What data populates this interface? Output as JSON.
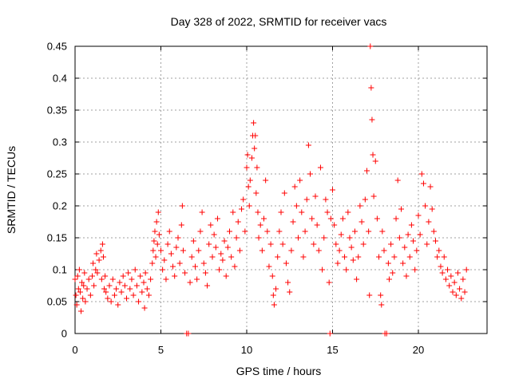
{
  "chart_data": {
    "type": "scatter",
    "title": "Day 328 of 2022, SRMTID for receiver vacs",
    "xlabel": "GPS time / hours",
    "ylabel": "SRMTID / TECUs",
    "xlim": [
      0,
      24
    ],
    "ylim": [
      0,
      0.45
    ],
    "xticks": [
      0,
      5,
      10,
      15,
      20
    ],
    "xtick_labels": [
      "0",
      "5",
      "10",
      "15",
      "20"
    ],
    "yticks": [
      0,
      0.05,
      0.1,
      0.15,
      0.2,
      0.25,
      0.3,
      0.35,
      0.4,
      0.45
    ],
    "ytick_labels": [
      "0",
      "0.05",
      "0.1",
      "0.15",
      "0.2",
      "0.25",
      "0.3",
      "0.35",
      "0.4",
      "0.45"
    ],
    "grid": true,
    "marker": "+",
    "marker_color": "#ff0000",
    "series": [
      {
        "name": "SRMTID",
        "points": [
          [
            0.0,
            0.085
          ],
          [
            0.05,
            0.06
          ],
          [
            0.1,
            0.045
          ],
          [
            0.15,
            0.09
          ],
          [
            0.2,
            0.07
          ],
          [
            0.25,
            0.1
          ],
          [
            0.3,
            0.065
          ],
          [
            0.35,
            0.035
          ],
          [
            0.4,
            0.08
          ],
          [
            0.45,
            0.055
          ],
          [
            0.5,
            0.075
          ],
          [
            0.55,
            0.095
          ],
          [
            0.6,
            0.05
          ],
          [
            0.7,
            0.07
          ],
          [
            0.8,
            0.085
          ],
          [
            0.9,
            0.06
          ],
          [
            1.0,
            0.09
          ],
          [
            1.05,
            0.11
          ],
          [
            1.1,
            0.075
          ],
          [
            1.2,
            0.1
          ],
          [
            1.25,
            0.125
          ],
          [
            1.3,
            0.095
          ],
          [
            1.4,
            0.115
          ],
          [
            1.5,
            0.13
          ],
          [
            1.55,
            0.085
          ],
          [
            1.6,
            0.14
          ],
          [
            1.65,
            0.12
          ],
          [
            1.7,
            0.07
          ],
          [
            1.75,
            0.09
          ],
          [
            1.8,
            0.065
          ],
          [
            1.9,
            0.055
          ],
          [
            2.0,
            0.075
          ],
          [
            2.1,
            0.05
          ],
          [
            2.2,
            0.085
          ],
          [
            2.3,
            0.06
          ],
          [
            2.4,
            0.07
          ],
          [
            2.5,
            0.045
          ],
          [
            2.6,
            0.08
          ],
          [
            2.7,
            0.065
          ],
          [
            2.8,
            0.09
          ],
          [
            2.9,
            0.075
          ],
          [
            3.0,
            0.055
          ],
          [
            3.1,
            0.095
          ],
          [
            3.2,
            0.07
          ],
          [
            3.3,
            0.085
          ],
          [
            3.4,
            0.06
          ],
          [
            3.5,
            0.1
          ],
          [
            3.6,
            0.075
          ],
          [
            3.7,
            0.05
          ],
          [
            3.8,
            0.09
          ],
          [
            3.9,
            0.065
          ],
          [
            4.0,
            0.08
          ],
          [
            4.05,
            0.04
          ],
          [
            4.1,
            0.095
          ],
          [
            4.2,
            0.07
          ],
          [
            4.3,
            0.06
          ],
          [
            4.4,
            0.085
          ],
          [
            4.5,
            0.11
          ],
          [
            4.55,
            0.13
          ],
          [
            4.6,
            0.145
          ],
          [
            4.65,
            0.16
          ],
          [
            4.7,
            0.12
          ],
          [
            4.75,
            0.175
          ],
          [
            4.8,
            0.14
          ],
          [
            4.85,
            0.19
          ],
          [
            4.9,
            0.155
          ],
          [
            5.0,
            0.13
          ],
          [
            5.1,
            0.1
          ],
          [
            5.2,
            0.115
          ],
          [
            5.3,
            0.085
          ],
          [
            5.4,
            0.14
          ],
          [
            5.5,
            0.16
          ],
          [
            5.6,
            0.125
          ],
          [
            5.7,
            0.105
          ],
          [
            5.8,
            0.09
          ],
          [
            5.9,
            0.135
          ],
          [
            6.0,
            0.15
          ],
          [
            6.1,
            0.11
          ],
          [
            6.2,
            0.17
          ],
          [
            6.25,
            0.2
          ],
          [
            6.3,
            0.13
          ],
          [
            6.4,
            0.095
          ],
          [
            6.5,
            0.0
          ],
          [
            6.6,
            0.0
          ],
          [
            6.7,
            0.08
          ],
          [
            6.8,
            0.12
          ],
          [
            6.9,
            0.145
          ],
          [
            7.0,
            0.105
          ],
          [
            7.1,
            0.085
          ],
          [
            7.2,
            0.13
          ],
          [
            7.3,
            0.16
          ],
          [
            7.4,
            0.19
          ],
          [
            7.5,
            0.11
          ],
          [
            7.6,
            0.095
          ],
          [
            7.7,
            0.075
          ],
          [
            7.8,
            0.14
          ],
          [
            7.9,
            0.17
          ],
          [
            8.0,
            0.12
          ],
          [
            8.1,
            0.155
          ],
          [
            8.2,
            0.135
          ],
          [
            8.3,
            0.18
          ],
          [
            8.4,
            0.1
          ],
          [
            8.5,
            0.125
          ],
          [
            8.6,
            0.115
          ],
          [
            8.7,
            0.145
          ],
          [
            8.8,
            0.09
          ],
          [
            8.9,
            0.135
          ],
          [
            9.0,
            0.16
          ],
          [
            9.1,
            0.12
          ],
          [
            9.2,
            0.19
          ],
          [
            9.3,
            0.105
          ],
          [
            9.4,
            0.15
          ],
          [
            9.5,
            0.175
          ],
          [
            9.6,
            0.13
          ],
          [
            9.7,
            0.195
          ],
          [
            9.8,
            0.21
          ],
          [
            9.9,
            0.16
          ],
          [
            10.0,
            0.26
          ],
          [
            10.05,
            0.28
          ],
          [
            10.1,
            0.23
          ],
          [
            10.15,
            0.2
          ],
          [
            10.2,
            0.24
          ],
          [
            10.3,
            0.275
          ],
          [
            10.35,
            0.31
          ],
          [
            10.4,
            0.33
          ],
          [
            10.45,
            0.29
          ],
          [
            10.5,
            0.31
          ],
          [
            10.55,
            0.22
          ],
          [
            10.6,
            0.26
          ],
          [
            10.65,
            0.19
          ],
          [
            10.7,
            0.15
          ],
          [
            10.8,
            0.17
          ],
          [
            10.9,
            0.13
          ],
          [
            11.0,
            0.18
          ],
          [
            11.1,
            0.24
          ],
          [
            11.2,
            0.16
          ],
          [
            11.3,
            0.105
          ],
          [
            11.4,
            0.14
          ],
          [
            11.5,
            0.09
          ],
          [
            11.55,
            0.06
          ],
          [
            11.6,
            0.045
          ],
          [
            11.7,
            0.07
          ],
          [
            11.8,
            0.12
          ],
          [
            11.9,
            0.16
          ],
          [
            12.0,
            0.19
          ],
          [
            12.1,
            0.14
          ],
          [
            12.2,
            0.22
          ],
          [
            12.3,
            0.11
          ],
          [
            12.4,
            0.08
          ],
          [
            12.5,
            0.065
          ],
          [
            12.6,
            0.13
          ],
          [
            12.7,
            0.175
          ],
          [
            12.8,
            0.23
          ],
          [
            12.9,
            0.2
          ],
          [
            13.0,
            0.15
          ],
          [
            13.1,
            0.24
          ],
          [
            13.2,
            0.19
          ],
          [
            13.3,
            0.12
          ],
          [
            13.4,
            0.16
          ],
          [
            13.5,
            0.21
          ],
          [
            13.6,
            0.295
          ],
          [
            13.7,
            0.25
          ],
          [
            13.8,
            0.18
          ],
          [
            13.9,
            0.14
          ],
          [
            14.0,
            0.215
          ],
          [
            14.1,
            0.17
          ],
          [
            14.2,
            0.13
          ],
          [
            14.3,
            0.26
          ],
          [
            14.4,
            0.1
          ],
          [
            14.5,
            0.15
          ],
          [
            14.6,
            0.21
          ],
          [
            14.7,
            0.19
          ],
          [
            14.8,
            0.08
          ],
          [
            14.85,
            0.0
          ],
          [
            14.9,
            0.18
          ],
          [
            15.0,
            0.225
          ],
          [
            15.1,
            0.17
          ],
          [
            15.2,
            0.14
          ],
          [
            15.3,
            0.11
          ],
          [
            15.4,
            0.13
          ],
          [
            15.5,
            0.155
          ],
          [
            15.6,
            0.18
          ],
          [
            15.7,
            0.12
          ],
          [
            15.8,
            0.1
          ],
          [
            15.9,
            0.19
          ],
          [
            16.0,
            0.15
          ],
          [
            16.1,
            0.135
          ],
          [
            16.2,
            0.115
          ],
          [
            16.3,
            0.16
          ],
          [
            16.4,
            0.085
          ],
          [
            16.5,
            0.12
          ],
          [
            16.6,
            0.2
          ],
          [
            16.7,
            0.175
          ],
          [
            16.8,
            0.14
          ],
          [
            16.9,
            0.21
          ],
          [
            17.0,
            0.255
          ],
          [
            17.1,
            0.16
          ],
          [
            17.15,
            0.06
          ],
          [
            17.2,
            0.45
          ],
          [
            17.25,
            0.385
          ],
          [
            17.3,
            0.335
          ],
          [
            17.35,
            0.28
          ],
          [
            17.4,
            0.215
          ],
          [
            17.5,
            0.27
          ],
          [
            17.6,
            0.18
          ],
          [
            17.7,
            0.12
          ],
          [
            17.8,
            0.06
          ],
          [
            17.85,
            0.045
          ],
          [
            17.9,
            0.16
          ],
          [
            18.0,
            0.13
          ],
          [
            18.05,
            0.0
          ],
          [
            18.15,
            0.0
          ],
          [
            18.25,
            0.11
          ],
          [
            18.3,
            0.085
          ],
          [
            18.4,
            0.14
          ],
          [
            18.5,
            0.095
          ],
          [
            18.6,
            0.12
          ],
          [
            18.7,
            0.18
          ],
          [
            18.8,
            0.24
          ],
          [
            18.9,
            0.15
          ],
          [
            19.0,
            0.195
          ],
          [
            19.1,
            0.11
          ],
          [
            19.2,
            0.135
          ],
          [
            19.3,
            0.09
          ],
          [
            19.4,
            0.155
          ],
          [
            19.5,
            0.12
          ],
          [
            19.6,
            0.17
          ],
          [
            19.7,
            0.145
          ],
          [
            19.8,
            0.1
          ],
          [
            19.9,
            0.13
          ],
          [
            20.0,
            0.185
          ],
          [
            20.1,
            0.155
          ],
          [
            20.2,
            0.25
          ],
          [
            20.3,
            0.235
          ],
          [
            20.4,
            0.2
          ],
          [
            20.5,
            0.14
          ],
          [
            20.6,
            0.175
          ],
          [
            20.7,
            0.23
          ],
          [
            20.8,
            0.195
          ],
          [
            20.9,
            0.16
          ],
          [
            21.0,
            0.145
          ],
          [
            21.1,
            0.12
          ],
          [
            21.2,
            0.13
          ],
          [
            21.3,
            0.105
          ],
          [
            21.4,
            0.095
          ],
          [
            21.5,
            0.12
          ],
          [
            21.6,
            0.085
          ],
          [
            21.7,
            0.1
          ],
          [
            21.8,
            0.075
          ],
          [
            21.9,
            0.09
          ],
          [
            22.0,
            0.065
          ],
          [
            22.1,
            0.08
          ],
          [
            22.2,
            0.06
          ],
          [
            22.3,
            0.095
          ],
          [
            22.4,
            0.07
          ],
          [
            22.5,
            0.055
          ],
          [
            22.6,
            0.085
          ],
          [
            22.7,
            0.065
          ],
          [
            22.8,
            0.1
          ]
        ]
      }
    ]
  }
}
